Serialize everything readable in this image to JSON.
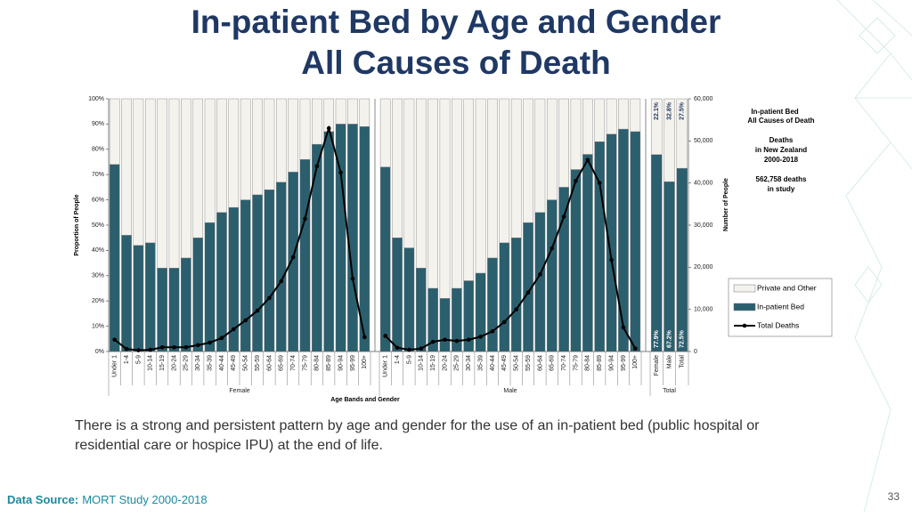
{
  "chart_data": {
    "type": "bar",
    "title": [
      "In-patient Bed by Age and Gender",
      "All Causes of Death"
    ],
    "x_label": "Age Bands and Gender",
    "y_label": "Proportion of People",
    "y2_label": "Number of People",
    "groups": [
      {
        "label": "Female",
        "categories": [
          "Under 1",
          "1-4",
          "5-9",
          "10-14",
          "15-19",
          "20-24",
          "25-29",
          "30-34",
          "35-39",
          "40-44",
          "45-49",
          "50-54",
          "55-59",
          "60-64",
          "65-69",
          "70-74",
          "75-79",
          "80-84",
          "85-89",
          "90-94",
          "95-99",
          "100+"
        ]
      },
      {
        "label": "Male",
        "categories": [
          "Under 1",
          "1-4",
          "5-9",
          "10-14",
          "15-19",
          "20-24",
          "25-29",
          "30-34",
          "35-39",
          "40-44",
          "45-49",
          "50-54",
          "55-59",
          "60-64",
          "65-69",
          "70-74",
          "75-79",
          "80-84",
          "85-89",
          "90-94",
          "95-99",
          "100+"
        ]
      },
      {
        "label": "Total",
        "categories": [
          "Female",
          "Male",
          "Total"
        ]
      }
    ],
    "series": [
      {
        "name": "In-patient Bed",
        "color": "#2b5f6e",
        "values": [
          74,
          46,
          42,
          43,
          33,
          33,
          37,
          45,
          51,
          55,
          57,
          60,
          62,
          64,
          67,
          71,
          76,
          82,
          87,
          90,
          90,
          89,
          73,
          45,
          41,
          33,
          25,
          21,
          25,
          28,
          31,
          37,
          43,
          45,
          51,
          55,
          60,
          65,
          72,
          78,
          83,
          86,
          88,
          87,
          77.9,
          67.2,
          72.5
        ],
        "value_labels": [
          null,
          null,
          null,
          null,
          null,
          null,
          null,
          null,
          null,
          null,
          null,
          null,
          null,
          null,
          null,
          null,
          null,
          null,
          null,
          null,
          null,
          null,
          null,
          null,
          null,
          null,
          null,
          null,
          null,
          null,
          null,
          null,
          null,
          null,
          null,
          null,
          null,
          null,
          null,
          null,
          null,
          null,
          null,
          null,
          "77.9%",
          "67.2%",
          "72.5%"
        ]
      },
      {
        "name": "Private and Other",
        "color": "#f4f2ec",
        "values": [
          26,
          54,
          58,
          57,
          67,
          67,
          63,
          55,
          49,
          45,
          43,
          40,
          38,
          36,
          33,
          29,
          24,
          18,
          13,
          10,
          10,
          11,
          27,
          55,
          59,
          67,
          75,
          79,
          75,
          72,
          69,
          63,
          57,
          55,
          49,
          45,
          40,
          35,
          28,
          22,
          17,
          14,
          12,
          13,
          22.1,
          32.8,
          27.5
        ],
        "value_labels": [
          null,
          null,
          null,
          null,
          null,
          null,
          null,
          null,
          null,
          null,
          null,
          null,
          null,
          null,
          null,
          null,
          null,
          null,
          null,
          null,
          null,
          null,
          null,
          null,
          null,
          null,
          null,
          null,
          null,
          null,
          null,
          null,
          null,
          null,
          null,
          null,
          null,
          null,
          null,
          null,
          null,
          null,
          null,
          null,
          "22.1%",
          "32.8%",
          "27.5%"
        ]
      },
      {
        "name": "Total Deaths",
        "color": "#000000",
        "type": "line",
        "axis": "y2",
        "values": [
          2800,
          600,
          300,
          400,
          1000,
          1000,
          1000,
          1500,
          2100,
          3200,
          5300,
          7400,
          9700,
          12700,
          16700,
          22400,
          31500,
          44000,
          53000,
          42500,
          17300,
          3400,
          3700,
          900,
          400,
          700,
          2300,
          2800,
          2500,
          2800,
          3500,
          4800,
          7000,
          10000,
          14000,
          18300,
          24500,
          32000,
          40500,
          45500,
          40000,
          21700,
          5700,
          700,
          null,
          null,
          null
        ]
      }
    ],
    "ylim": [
      0,
      100
    ],
    "yticks": [
      {
        "value": 0,
        "label": "0%"
      },
      {
        "value": 10,
        "label": "10%"
      },
      {
        "value": 20,
        "label": "20%"
      },
      {
        "value": 30,
        "label": "30%"
      },
      {
        "value": 40,
        "label": "40%"
      },
      {
        "value": 50,
        "label": "50%"
      },
      {
        "value": 60,
        "label": "60%"
      },
      {
        "value": 70,
        "label": "70%"
      },
      {
        "value": 80,
        "label": "80%"
      },
      {
        "value": 90,
        "label": "90%"
      },
      {
        "value": 100,
        "label": "100%"
      }
    ],
    "y2lim": [
      0,
      60000
    ],
    "y2ticks": [
      0,
      {
        "value": 10000,
        "label": "10,000"
      },
      {
        "value": 20000,
        "label": "20,000"
      },
      {
        "value": 30000,
        "label": "30,000"
      },
      {
        "value": 40000,
        "label": "40,000"
      },
      {
        "value": 50000,
        "label": "50,000"
      },
      {
        "value": 60000,
        "label": "60,000"
      }
    ],
    "legend_order": [
      1,
      0,
      2
    ],
    "info_box": {
      "heading": [
        "In-patient Bed",
        "All Causes of Death"
      ],
      "lines": [
        "Deaths",
        "in New Zealand",
        "2000-2018"
      ],
      "note": [
        "562,758 deaths",
        "in study"
      ]
    }
  },
  "caption": "There is a strong and persistent pattern by age and gender for the use of an in-patient bed (public hospital or residential care or hospice IPU) at the end of life.",
  "source": {
    "label": "Data Source:",
    "text": "MORT Study 2000-2018"
  },
  "page_number": "33"
}
